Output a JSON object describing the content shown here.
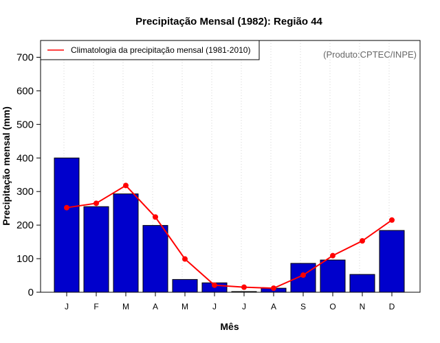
{
  "chart_data": {
    "type": "bar",
    "title": "Precipitação Mensal (1982): Região 44",
    "xlabel": "Mês",
    "ylabel": "Precipitação mensal (mm)",
    "ylim": [
      0,
      750
    ],
    "yticks": [
      0,
      100,
      200,
      300,
      400,
      500,
      600,
      700
    ],
    "categories": [
      "J",
      "F",
      "M",
      "A",
      "M",
      "J",
      "J",
      "A",
      "S",
      "O",
      "N",
      "D"
    ],
    "series": [
      {
        "name": "Precipitação mensal (1982)",
        "type": "bar",
        "color": "#0000cc",
        "values": [
          400,
          255,
          293,
          199,
          38,
          28,
          2,
          12,
          86,
          96,
          53,
          184
        ]
      },
      {
        "name": "Climatologia da precipitação mensal (1981-2010)",
        "type": "line",
        "color": "#ff0000",
        "values": [
          252,
          265,
          318,
          224,
          99,
          21,
          15,
          12,
          51,
          109,
          153,
          215
        ]
      }
    ],
    "legend": {
      "position": "top-left",
      "label": "Climatologia da precipitação mensal (1981-2010)"
    },
    "source_note": "(Produto:CPTEC/INPE)",
    "grid": "vertical-dotted"
  }
}
